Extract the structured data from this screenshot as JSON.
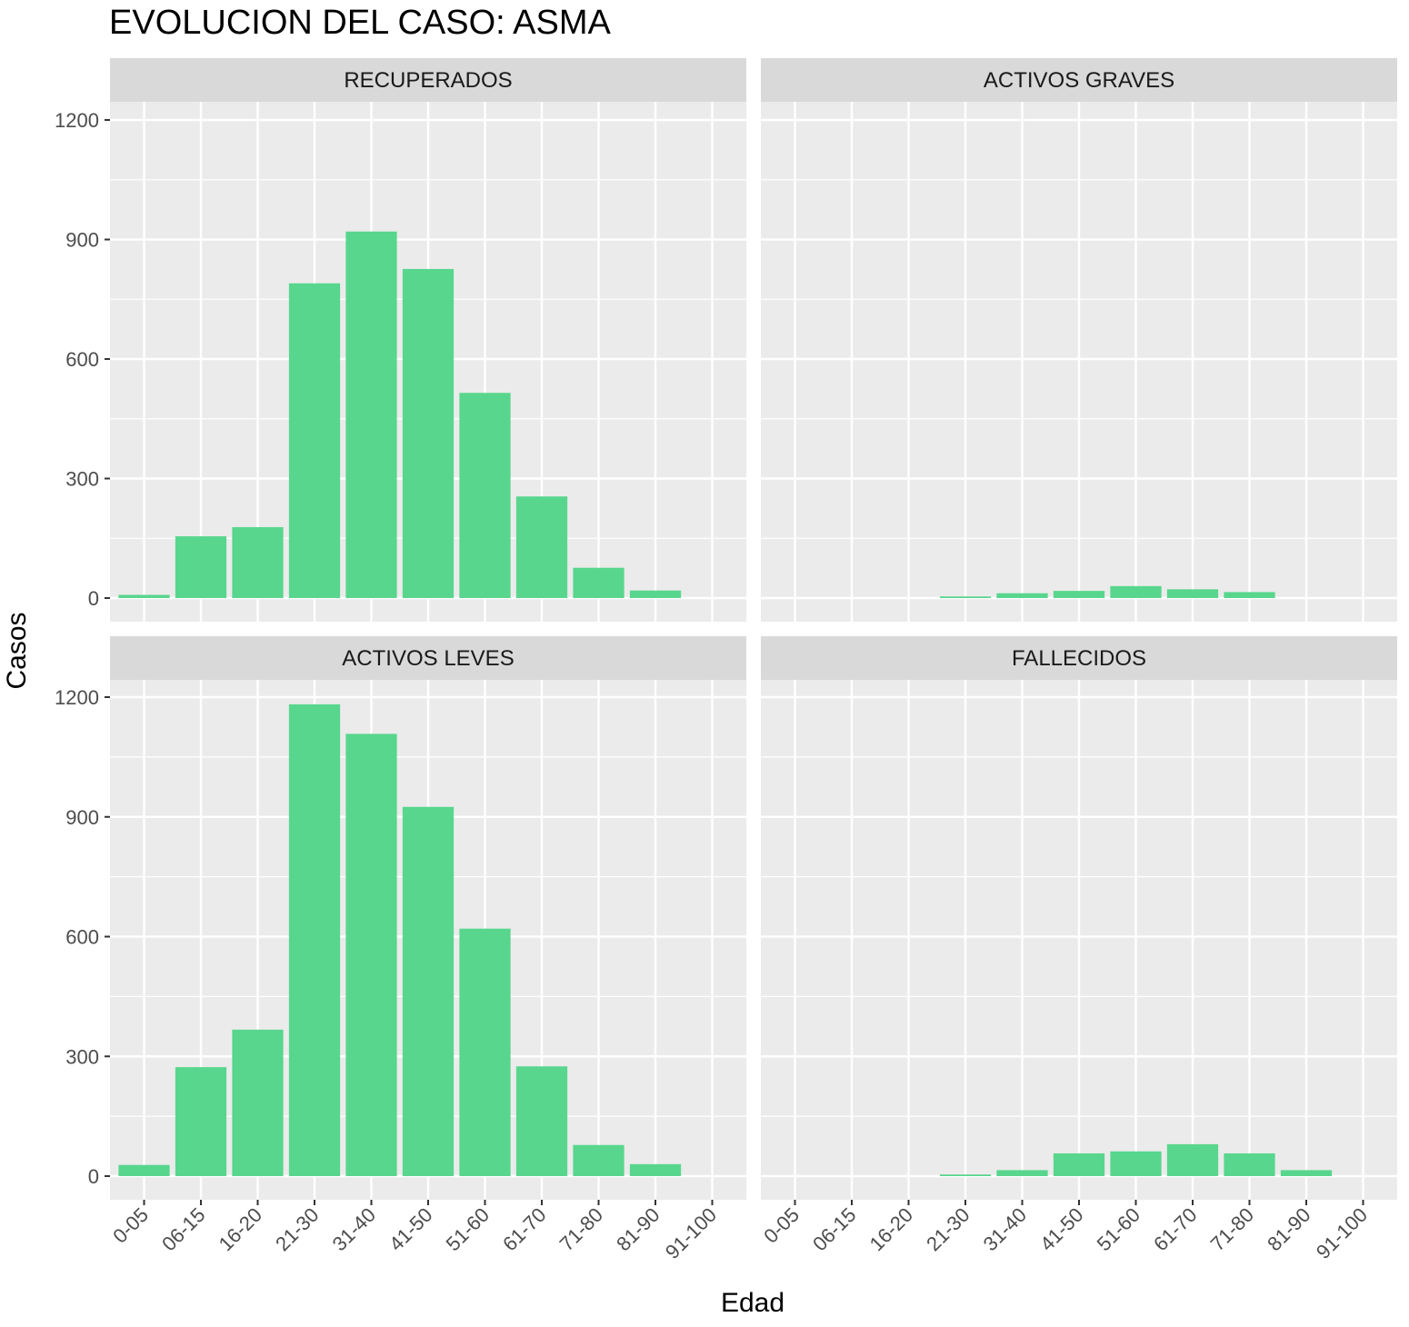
{
  "title": "EVOLUCION DEL CASO: ASMA",
  "colors": {
    "bar": "#58D68D",
    "panel_background": "#EBEBEB",
    "strip_background": "#D9D9D9",
    "grid": "#FFFFFF"
  },
  "chart_data": {
    "type": "bar",
    "facet_layout": "2x2",
    "xlabel": "Edad",
    "ylabel": "Casos",
    "ylim": [
      0,
      1200
    ],
    "yticks": [
      0,
      300,
      600,
      900,
      1200
    ],
    "grid": true,
    "categories": [
      "0-05",
      "06-15",
      "16-20",
      "21-30",
      "31-40",
      "41-50",
      "51-60",
      "61-70",
      "71-80",
      "81-90",
      "91-100"
    ],
    "panels": [
      {
        "name": "RECUPERADOS",
        "values": [
          8,
          155,
          178,
          790,
          920,
          826,
          515,
          255,
          76,
          19,
          0
        ]
      },
      {
        "name": "ACTIVOS GRAVES",
        "values": [
          0,
          0,
          0,
          4,
          12,
          18,
          30,
          22,
          15,
          0,
          0
        ]
      },
      {
        "name": "ACTIVOS LEVES",
        "values": [
          28,
          273,
          367,
          1182,
          1108,
          925,
          620,
          275,
          78,
          30,
          0
        ]
      },
      {
        "name": "FALLECIDOS",
        "values": [
          0,
          0,
          0,
          4,
          15,
          57,
          62,
          80,
          57,
          15,
          0
        ]
      }
    ]
  }
}
